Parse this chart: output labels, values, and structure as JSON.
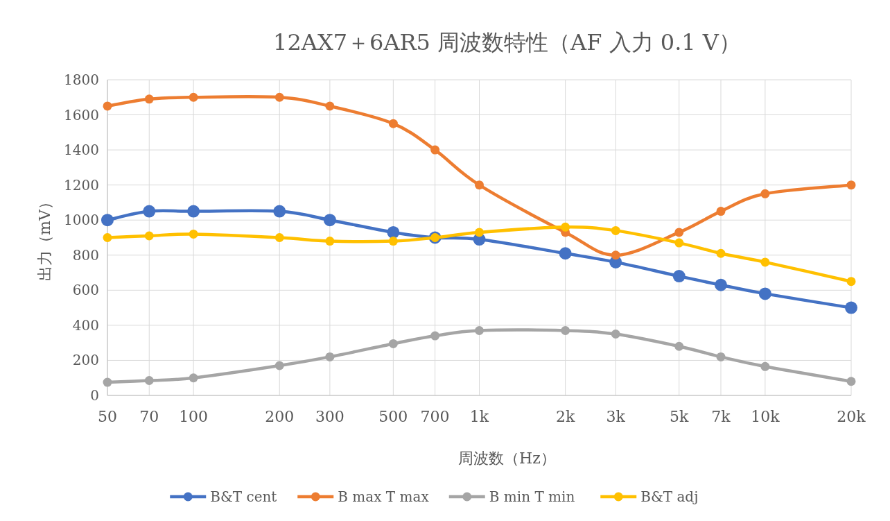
{
  "chart_data": {
    "type": "line",
    "title": "12AX7＋6AR5 周波数特性（AF 入力 0.1 V）",
    "xlabel": "周波数（Hz）",
    "ylabel": "出力（mV）",
    "x": [
      50,
      70,
      100,
      200,
      300,
      500,
      700,
      1000,
      2000,
      3000,
      5000,
      7000,
      10000,
      20000
    ],
    "log": "x",
    "xlim": [
      50,
      20000
    ],
    "xticks": [
      50,
      70,
      100,
      200,
      300,
      500,
      700,
      {
        "value": 1000,
        "label": "1k"
      },
      {
        "value": 2000,
        "label": "2k"
      },
      {
        "value": 3000,
        "label": "3k"
      },
      {
        "value": 5000,
        "label": "5k"
      },
      {
        "value": 7000,
        "label": "7k"
      },
      {
        "value": 10000,
        "label": "10k"
      },
      {
        "value": 20000,
        "label": "20k"
      }
    ],
    "ylim": [
      0,
      1800
    ],
    "yticks": [
      0,
      200,
      400,
      600,
      800,
      1000,
      1200,
      1400,
      1600,
      1800
    ],
    "grid": true,
    "legend": "bottom",
    "marker": "circle",
    "line_style": "solid",
    "series": [
      {
        "name": "B&T cent",
        "color": "#4472c4",
        "values": [
          1000,
          1050,
          1050,
          1050,
          1000,
          930,
          900,
          890,
          810,
          760,
          680,
          630,
          580,
          500
        ]
      },
      {
        "name": "B max T max",
        "color": "#ed7d31",
        "values": [
          1650,
          1690,
          1700,
          1700,
          1650,
          1550,
          1400,
          1200,
          930,
          800,
          930,
          1050,
          1150,
          1200
        ]
      },
      {
        "name": "B min T min",
        "color": "#a5a5a5",
        "values": [
          75,
          85,
          100,
          170,
          220,
          295,
          340,
          370,
          370,
          350,
          280,
          220,
          165,
          80
        ]
      },
      {
        "name": "B&T adj",
        "color": "#ffc000",
        "values": [
          900,
          910,
          920,
          900,
          880,
          880,
          900,
          930,
          960,
          940,
          870,
          810,
          760,
          650
        ]
      }
    ]
  }
}
